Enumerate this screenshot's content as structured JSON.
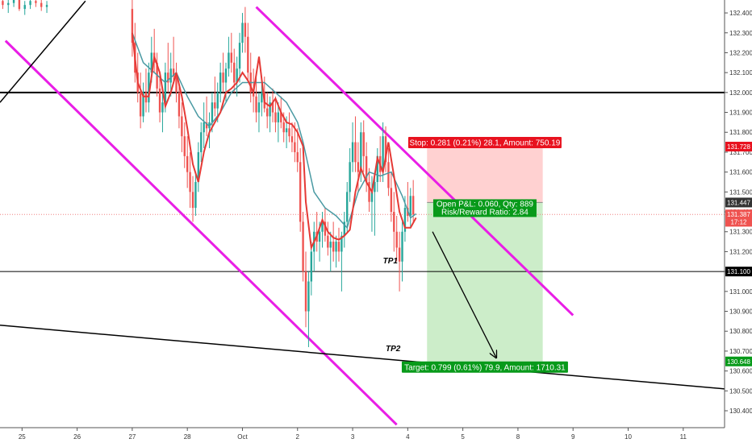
{
  "chart_data": {
    "type": "candlestick",
    "title": "",
    "xlabel": "",
    "ylabel": "",
    "ylim": [
      130.315,
      132.465
    ],
    "y_ticks": [
      132.4,
      132.3,
      132.2,
      132.1,
      132.0,
      131.9,
      131.8,
      131.7,
      131.6,
      131.5,
      131.4,
      131.3,
      131.2,
      131.1,
      131.0,
      130.9,
      130.8,
      130.7,
      130.6,
      130.5,
      130.4
    ],
    "y_tick_labels": [
      "132.400",
      "132.300",
      "132.200",
      "132.100",
      "132.000",
      "131.900",
      "131.800",
      "131.700",
      "131.600",
      "131.500",
      "131.400",
      "131.300",
      "131.200",
      "131.100",
      "131.000",
      "130.900",
      "130.800",
      "130.700",
      "130.600",
      "130.500",
      "130.400"
    ],
    "x_ticks": [
      {
        "x": 0,
        "label": "25"
      },
      {
        "x": 1,
        "label": "26"
      },
      {
        "x": 2,
        "label": "27"
      },
      {
        "x": 3,
        "label": "28"
      },
      {
        "x": 4,
        "label": "Oct"
      },
      {
        "x": 5,
        "label": "2"
      },
      {
        "x": 6,
        "label": "3"
      },
      {
        "x": 7,
        "label": "4"
      },
      {
        "x": 8,
        "label": "5"
      },
      {
        "x": 9,
        "label": "8"
      },
      {
        "x": 10,
        "label": "9"
      },
      {
        "x": 11,
        "label": "10"
      },
      {
        "x": 12,
        "label": "11"
      }
    ],
    "xlim": [
      -0.4,
      12.75
    ],
    "grid": false,
    "colors": {
      "up": "#26a69a",
      "down": "#ef5350",
      "ma_fast": "#e53935",
      "ma_slow": "#4a9aa3",
      "channel": "#e91ee6",
      "stop_zone": "#ffcccc",
      "target_zone": "#c9ecc6",
      "stop_label": "#e8121f",
      "target_label": "#089a1a",
      "level_line": "#000000",
      "price_line": "#f08080"
    },
    "price_labels": [
      {
        "value": 131.728,
        "text": "131.728",
        "color": "#e8121f"
      },
      {
        "value": 131.447,
        "text": "131.447",
        "color": "#333333"
      },
      {
        "value": 131.387,
        "text": "131.387",
        "color": "#ef5350"
      },
      {
        "value": 131.35,
        "text": "17:12",
        "color": "#ef5350"
      },
      {
        "value": 131.1,
        "text": "131.100",
        "color": "#000000"
      },
      {
        "value": 130.648,
        "text": "130.648",
        "color": "#089a1a"
      }
    ],
    "horizontal_levels": [
      {
        "value": 132.0,
        "width": 2
      },
      {
        "value": 131.1,
        "width": 1
      }
    ],
    "current_price": 131.387,
    "trend_lines": [
      {
        "name": "channel-upper",
        "from": [
          4.25,
          132.43
        ],
        "to": [
          10.0,
          130.88
        ],
        "color": "#e91ee6"
      },
      {
        "name": "channel-lower",
        "from": [
          -0.3,
          132.26
        ],
        "to": [
          6.8,
          130.33
        ],
        "color": "#e91ee6"
      },
      {
        "name": "support-line",
        "from": [
          -0.4,
          130.83
        ],
        "to": [
          12.75,
          130.51
        ],
        "color": "#000000"
      },
      {
        "name": "rising-line",
        "from": [
          -0.4,
          131.95
        ],
        "to": [
          1.15,
          132.46
        ],
        "color": "#000000"
      }
    ],
    "position": {
      "x_start": 7.35,
      "x_end": 9.45,
      "entry": 131.447,
      "stop": 131.728,
      "target": 130.648,
      "stop_text": "Stop: 0.281 (0.21%) 28.1, Amount: 750.19",
      "pl_text": "Open P&L: 0.060, Qty: 889",
      "rr_text": "Risk/Reward Ratio: 2.84",
      "target_text": "Target: 0.799 (0.61%) 79.9, Amount: 1710.31"
    },
    "arrow": {
      "from": [
        7.45,
        131.3
      ],
      "to": [
        8.6,
        130.67
      ]
    },
    "annotations": [
      {
        "text": "TP1",
        "x": 6.55,
        "y": 131.14
      },
      {
        "text": "TP2",
        "x": 6.6,
        "y": 130.7
      }
    ],
    "ma_fast": [
      [
        2.0,
        132.3
      ],
      [
        2.1,
        132.05
      ],
      [
        2.2,
        131.98
      ],
      [
        2.3,
        131.98
      ],
      [
        2.4,
        132.18
      ],
      [
        2.5,
        132.1
      ],
      [
        2.6,
        131.93
      ],
      [
        2.7,
        132.0
      ],
      [
        2.8,
        132.1
      ],
      [
        2.9,
        131.98
      ],
      [
        3.0,
        131.82
      ],
      [
        3.1,
        131.64
      ],
      [
        3.2,
        131.55
      ],
      [
        3.3,
        131.7
      ],
      [
        3.4,
        131.8
      ],
      [
        3.5,
        131.85
      ],
      [
        3.6,
        131.9
      ],
      [
        3.7,
        132.0
      ],
      [
        3.8,
        132.02
      ],
      [
        3.9,
        132.05
      ],
      [
        4.0,
        132.1
      ],
      [
        4.1,
        132.06
      ],
      [
        4.2,
        132.0
      ],
      [
        4.3,
        132.18
      ],
      [
        4.4,
        131.95
      ],
      [
        4.5,
        131.93
      ],
      [
        4.6,
        131.97
      ],
      [
        4.7,
        131.9
      ],
      [
        4.8,
        131.85
      ],
      [
        4.9,
        131.84
      ],
      [
        5.0,
        131.8
      ],
      [
        5.1,
        131.73
      ],
      [
        5.15,
        131.45
      ],
      [
        5.25,
        131.22
      ],
      [
        5.35,
        131.28
      ],
      [
        5.45,
        131.36
      ],
      [
        5.55,
        131.3
      ],
      [
        5.65,
        131.27
      ],
      [
        5.75,
        131.26
      ],
      [
        5.85,
        131.28
      ],
      [
        5.95,
        131.31
      ],
      [
        6.05,
        131.5
      ],
      [
        6.15,
        131.62
      ],
      [
        6.25,
        131.55
      ],
      [
        6.35,
        131.5
      ],
      [
        6.45,
        131.67
      ],
      [
        6.55,
        131.6
      ],
      [
        6.65,
        131.75
      ],
      [
        6.75,
        131.58
      ],
      [
        6.85,
        131.4
      ],
      [
        6.95,
        131.32
      ],
      [
        7.05,
        131.32
      ],
      [
        7.15,
        131.37
      ]
    ],
    "ma_slow": [
      [
        2.0,
        132.3
      ],
      [
        2.2,
        132.15
      ],
      [
        2.4,
        132.1
      ],
      [
        2.6,
        132.05
      ],
      [
        2.8,
        132.1
      ],
      [
        3.0,
        131.98
      ],
      [
        3.2,
        131.88
      ],
      [
        3.4,
        131.83
      ],
      [
        3.6,
        131.9
      ],
      [
        3.8,
        132.0
      ],
      [
        4.0,
        132.05
      ],
      [
        4.2,
        132.05
      ],
      [
        4.4,
        132.05
      ],
      [
        4.6,
        132.0
      ],
      [
        4.8,
        131.95
      ],
      [
        5.0,
        131.85
      ],
      [
        5.1,
        131.75
      ],
      [
        5.3,
        131.5
      ],
      [
        5.5,
        131.42
      ],
      [
        5.7,
        131.38
      ],
      [
        5.9,
        131.32
      ],
      [
        6.1,
        131.5
      ],
      [
        6.3,
        131.6
      ],
      [
        6.5,
        131.58
      ],
      [
        6.7,
        131.6
      ],
      [
        6.9,
        131.48
      ],
      [
        7.05,
        131.37
      ],
      [
        7.15,
        131.39
      ]
    ],
    "candles": [
      [
        -0.35,
        132.46,
        132.48,
        132.42,
        132.44
      ],
      [
        -0.25,
        132.44,
        132.47,
        132.4,
        132.45
      ],
      [
        -0.15,
        132.45,
        132.49,
        132.43,
        132.47
      ],
      [
        -0.05,
        132.47,
        132.49,
        132.41,
        132.42
      ],
      [
        0.05,
        132.42,
        132.46,
        132.39,
        132.44
      ],
      [
        0.15,
        132.44,
        132.48,
        132.42,
        132.46
      ],
      [
        0.25,
        132.46,
        132.48,
        132.43,
        132.45
      ],
      [
        0.35,
        132.45,
        132.47,
        132.41,
        132.43
      ],
      [
        0.45,
        132.43,
        132.46,
        132.4,
        132.44
      ],
      [
        2.0,
        132.42,
        132.48,
        132.18,
        132.25
      ],
      [
        2.05,
        132.25,
        132.35,
        132.05,
        132.1
      ],
      [
        2.1,
        132.1,
        132.2,
        131.95,
        132.0
      ],
      [
        2.15,
        132.0,
        132.1,
        131.82,
        131.88
      ],
      [
        2.2,
        131.88,
        132.05,
        131.85,
        132.0
      ],
      [
        2.25,
        132.0,
        132.12,
        131.9,
        131.95
      ],
      [
        2.3,
        131.95,
        132.15,
        131.9,
        132.1
      ],
      [
        2.35,
        132.1,
        132.28,
        132.05,
        132.2
      ],
      [
        2.4,
        132.2,
        132.32,
        132.1,
        132.15
      ],
      [
        2.45,
        132.15,
        132.2,
        131.98,
        132.02
      ],
      [
        2.5,
        132.02,
        132.1,
        131.85,
        131.9
      ],
      [
        2.55,
        131.9,
        132.0,
        131.8,
        131.95
      ],
      [
        2.6,
        131.95,
        132.15,
        131.9,
        132.1
      ],
      [
        2.65,
        132.1,
        132.25,
        132.0,
        132.05
      ],
      [
        2.7,
        132.05,
        132.2,
        131.98,
        132.12
      ],
      [
        2.75,
        132.12,
        132.28,
        132.05,
        132.08
      ],
      [
        2.8,
        132.08,
        132.15,
        131.95,
        132.0
      ],
      [
        2.85,
        132.0,
        132.05,
        131.82,
        131.88
      ],
      [
        2.9,
        131.88,
        131.95,
        131.7,
        131.78
      ],
      [
        2.95,
        131.78,
        131.85,
        131.62,
        131.68
      ],
      [
        3.0,
        131.68,
        131.78,
        131.52,
        131.6
      ],
      [
        3.05,
        131.6,
        131.7,
        131.42,
        131.5
      ],
      [
        3.1,
        131.5,
        131.58,
        131.35,
        131.42
      ],
      [
        3.15,
        131.42,
        131.6,
        131.38,
        131.55
      ],
      [
        3.2,
        131.55,
        131.75,
        131.5,
        131.7
      ],
      [
        3.25,
        131.7,
        131.85,
        131.65,
        131.8
      ],
      [
        3.3,
        131.8,
        131.95,
        131.72,
        131.85
      ],
      [
        3.35,
        131.85,
        131.98,
        131.78,
        131.82
      ],
      [
        3.4,
        131.82,
        131.9,
        131.72,
        131.85
      ],
      [
        3.45,
        131.85,
        132.0,
        131.8,
        131.95
      ],
      [
        3.5,
        131.95,
        132.08,
        131.88,
        131.92
      ],
      [
        3.55,
        131.92,
        132.05,
        131.85,
        132.0
      ],
      [
        3.6,
        132.0,
        132.15,
        131.95,
        132.1
      ],
      [
        3.65,
        132.1,
        132.2,
        132.0,
        132.05
      ],
      [
        3.7,
        132.05,
        132.15,
        131.95,
        132.12
      ],
      [
        3.75,
        132.12,
        132.28,
        132.08,
        132.2
      ],
      [
        3.8,
        132.2,
        132.3,
        132.1,
        132.15
      ],
      [
        3.85,
        132.15,
        132.22,
        132.0,
        132.05
      ],
      [
        3.9,
        132.05,
        132.18,
        131.98,
        132.12
      ],
      [
        3.95,
        132.12,
        132.3,
        132.05,
        132.25
      ],
      [
        4.0,
        132.25,
        132.4,
        132.2,
        132.35
      ],
      [
        4.05,
        132.35,
        132.43,
        132.2,
        132.28
      ],
      [
        4.1,
        132.28,
        132.35,
        132.05,
        132.1
      ],
      [
        4.15,
        132.1,
        132.2,
        131.95,
        132.0
      ],
      [
        4.2,
        132.0,
        132.12,
        131.9,
        131.98
      ],
      [
        4.25,
        131.98,
        132.1,
        131.85,
        131.9
      ],
      [
        4.3,
        131.9,
        132.0,
        131.8,
        131.95
      ],
      [
        4.35,
        131.95,
        132.05,
        131.88,
        132.0
      ],
      [
        4.4,
        132.0,
        132.08,
        131.9,
        131.92
      ],
      [
        4.45,
        131.92,
        132.0,
        131.82,
        131.88
      ],
      [
        4.5,
        131.88,
        131.98,
        131.8,
        131.95
      ],
      [
        4.55,
        131.95,
        132.02,
        131.85,
        131.9
      ],
      [
        4.6,
        131.9,
        131.98,
        131.8,
        131.85
      ],
      [
        4.65,
        131.85,
        131.95,
        131.75,
        131.9
      ],
      [
        4.7,
        131.9,
        131.98,
        131.82,
        131.85
      ],
      [
        4.75,
        131.85,
        131.9,
        131.75,
        131.8
      ],
      [
        4.8,
        131.8,
        131.88,
        131.72,
        131.82
      ],
      [
        4.85,
        131.82,
        131.9,
        131.75,
        131.78
      ],
      [
        4.9,
        131.78,
        131.85,
        131.7,
        131.75
      ],
      [
        4.95,
        131.75,
        131.85,
        131.65,
        131.7
      ],
      [
        5.0,
        131.7,
        131.82,
        131.6,
        131.65
      ],
      [
        5.05,
        131.65,
        131.72,
        131.3,
        131.35
      ],
      [
        5.1,
        131.35,
        131.4,
        131.05,
        131.1
      ],
      [
        5.15,
        131.1,
        131.2,
        130.82,
        130.9
      ],
      [
        5.2,
        130.9,
        131.1,
        130.72,
        131.05
      ],
      [
        5.25,
        131.05,
        131.25,
        130.98,
        131.2
      ],
      [
        5.3,
        131.2,
        131.35,
        131.1,
        131.3
      ],
      [
        5.35,
        131.3,
        131.4,
        131.2,
        131.25
      ],
      [
        5.4,
        131.25,
        131.35,
        131.15,
        131.3
      ],
      [
        5.45,
        131.3,
        131.4,
        131.22,
        131.35
      ],
      [
        5.5,
        131.35,
        131.42,
        131.25,
        131.28
      ],
      [
        5.55,
        131.28,
        131.35,
        131.18,
        131.22
      ],
      [
        5.6,
        131.22,
        131.3,
        131.1,
        131.25
      ],
      [
        5.65,
        131.25,
        131.35,
        131.15,
        131.2
      ],
      [
        5.7,
        131.2,
        131.28,
        131.12,
        131.25
      ],
      [
        5.75,
        131.25,
        131.32,
        131.15,
        131.2
      ],
      [
        5.8,
        131.2,
        131.3,
        131.0,
        131.28
      ],
      [
        5.85,
        131.28,
        131.4,
        131.22,
        131.35
      ],
      [
        5.9,
        131.35,
        131.55,
        131.3,
        131.5
      ],
      [
        5.95,
        131.5,
        131.72,
        131.45,
        131.65
      ],
      [
        6.0,
        131.65,
        131.85,
        131.6,
        131.75
      ],
      [
        6.05,
        131.75,
        131.88,
        131.6,
        131.65
      ],
      [
        6.1,
        131.65,
        131.75,
        131.5,
        131.6
      ],
      [
        6.15,
        131.6,
        131.85,
        131.55,
        131.8
      ],
      [
        6.2,
        131.8,
        131.86,
        131.6,
        131.68
      ],
      [
        6.25,
        131.68,
        131.75,
        131.5,
        131.55
      ],
      [
        6.3,
        131.55,
        131.62,
        131.4,
        131.45
      ],
      [
        6.35,
        131.45,
        131.58,
        131.3,
        131.5
      ],
      [
        6.4,
        131.5,
        131.6,
        131.28,
        131.55
      ],
      [
        6.45,
        131.55,
        131.72,
        131.5,
        131.68
      ],
      [
        6.5,
        131.68,
        131.78,
        131.55,
        131.6
      ],
      [
        6.55,
        131.6,
        131.85,
        131.55,
        131.78
      ],
      [
        6.6,
        131.78,
        131.83,
        131.6,
        131.65
      ],
      [
        6.65,
        131.65,
        131.72,
        131.48,
        131.52
      ],
      [
        6.7,
        131.52,
        131.6,
        131.35,
        131.4
      ],
      [
        6.75,
        131.4,
        131.5,
        131.2,
        131.3
      ],
      [
        6.8,
        131.3,
        131.38,
        131.15,
        131.22
      ],
      [
        6.85,
        131.22,
        131.3,
        131.0,
        131.15
      ],
      [
        6.9,
        131.15,
        131.35,
        131.05,
        131.3
      ],
      [
        6.95,
        131.3,
        131.48,
        131.25,
        131.42
      ],
      [
        7.0,
        131.42,
        131.55,
        131.35,
        131.38
      ],
      [
        7.05,
        131.38,
        131.52,
        131.32,
        131.48
      ],
      [
        7.1,
        131.48,
        131.56,
        131.35,
        131.387
      ]
    ]
  }
}
